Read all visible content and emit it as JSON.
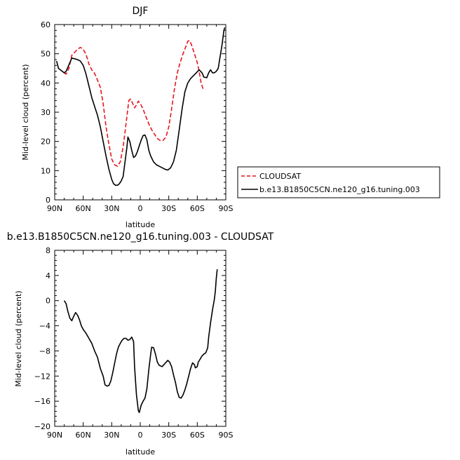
{
  "chart_data": [
    {
      "type": "line",
      "title": "DJF",
      "xlabel": "latitude",
      "ylabel": "Mid-level cloud (percent)",
      "xlim": [
        90,
        -90
      ],
      "ylim": [
        0,
        60
      ],
      "xticks": [
        90,
        60,
        30,
        0,
        -30,
        -60,
        -90
      ],
      "xtick_labels": [
        "90N",
        "60N",
        "30N",
        "0",
        "30S",
        "60S",
        "90S"
      ],
      "yticks": [
        0,
        10,
        20,
        30,
        40,
        50,
        60
      ],
      "ytick_labels": [
        "0",
        "10",
        "20",
        "30",
        "40",
        "50",
        "60"
      ],
      "legend": {
        "placement": "right"
      },
      "series": [
        {
          "name": "CLOUDSAT",
          "color": "#e8141e",
          "dash": "dashed",
          "points": [
            [
              80,
              43.5
            ],
            [
              78,
              43
            ],
            [
              75,
              45
            ],
            [
              72,
              49.5
            ],
            [
              69,
              50.5
            ],
            [
              66,
              51.5
            ],
            [
              63,
              52.2
            ],
            [
              60,
              51.5
            ],
            [
              57,
              49.8
            ],
            [
              54,
              46.5
            ],
            [
              51,
              44.5
            ],
            [
              48,
              43.3
            ],
            [
              45,
              41
            ],
            [
              42,
              38.5
            ],
            [
              39,
              33
            ],
            [
              36,
              25
            ],
            [
              33,
              19
            ],
            [
              30,
              14
            ],
            [
              27,
              12
            ],
            [
              24,
              11.5
            ],
            [
              21,
              13
            ],
            [
              18,
              18
            ],
            [
              15,
              26
            ],
            [
              12,
              34
            ],
            [
              10,
              34.5
            ],
            [
              8,
              33
            ],
            [
              6,
              31.5
            ],
            [
              4,
              32.5
            ],
            [
              2,
              33.8
            ],
            [
              0,
              33
            ],
            [
              -3,
              31
            ],
            [
              -6,
              28.5
            ],
            [
              -9,
              26
            ],
            [
              -12,
              24
            ],
            [
              -15,
              22.5
            ],
            [
              -18,
              21
            ],
            [
              -21,
              20.3
            ],
            [
              -24,
              20.3
            ],
            [
              -27,
              21.5
            ],
            [
              -30,
              25
            ],
            [
              -33,
              31
            ],
            [
              -36,
              38
            ],
            [
              -39,
              43.5
            ],
            [
              -42,
              47
            ],
            [
              -45,
              50
            ],
            [
              -48,
              52.5
            ],
            [
              -50,
              54.3
            ],
            [
              -52,
              54.5
            ],
            [
              -54,
              53
            ],
            [
              -57,
              50
            ],
            [
              -60,
              47
            ],
            [
              -62,
              44
            ],
            [
              -64,
              40
            ],
            [
              -66,
              38
            ]
          ]
        },
        {
          "name": "b.e13.B1850C5CN.ne120_g16.tuning.003",
          "color": "#000000",
          "dash": "solid",
          "points": [
            [
              88,
              47.5
            ],
            [
              86,
              45
            ],
            [
              84,
              44.5
            ],
            [
              82,
              44
            ],
            [
              80,
              43.5
            ],
            [
              78,
              44
            ],
            [
              76,
              45.5
            ],
            [
              74,
              47
            ],
            [
              72,
              48.5
            ],
            [
              69,
              48.3
            ],
            [
              66,
              48
            ],
            [
              63,
              47.5
            ],
            [
              60,
              46
            ],
            [
              57,
              43
            ],
            [
              54,
              39
            ],
            [
              51,
              35
            ],
            [
              48,
              32
            ],
            [
              45,
              29
            ],
            [
              42,
              25
            ],
            [
              39,
              20
            ],
            [
              36,
              15
            ],
            [
              33,
              10.5
            ],
            [
              30,
              7
            ],
            [
              28,
              5.5
            ],
            [
              26,
              5
            ],
            [
              24,
              5
            ],
            [
              22,
              5.5
            ],
            [
              20,
              6.5
            ],
            [
              18,
              8
            ],
            [
              16,
              13
            ],
            [
              14,
              18
            ],
            [
              13,
              21.5
            ],
            [
              11,
              20
            ],
            [
              9,
              17
            ],
            [
              7,
              14.5
            ],
            [
              5,
              15
            ],
            [
              3,
              16.5
            ],
            [
              1,
              18.5
            ],
            [
              -1,
              20.5
            ],
            [
              -3,
              22
            ],
            [
              -5,
              22.2
            ],
            [
              -7,
              20.5
            ],
            [
              -9,
              17
            ],
            [
              -11,
              15
            ],
            [
              -14,
              13
            ],
            [
              -17,
              12
            ],
            [
              -20,
              11.5
            ],
            [
              -23,
              11
            ],
            [
              -26,
              10.5
            ],
            [
              -29,
              10.2
            ],
            [
              -32,
              11
            ],
            [
              -35,
              13
            ],
            [
              -38,
              17
            ],
            [
              -41,
              24
            ],
            [
              -44,
              31
            ],
            [
              -47,
              37
            ],
            [
              -50,
              40
            ],
            [
              -53,
              41.5
            ],
            [
              -56,
              42.5
            ],
            [
              -59,
              43.5
            ],
            [
              -62,
              44.5
            ],
            [
              -65,
              43.5
            ],
            [
              -67,
              42
            ],
            [
              -70,
              41.8
            ],
            [
              -72,
              43.5
            ],
            [
              -74,
              44.5
            ],
            [
              -76,
              43.5
            ],
            [
              -78,
              43.5
            ],
            [
              -80,
              44
            ],
            [
              -82,
              45
            ],
            [
              -84,
              49
            ],
            [
              -86,
              53
            ],
            [
              -88,
              58
            ],
            [
              -89,
              59
            ]
          ]
        }
      ]
    },
    {
      "type": "line",
      "title": "b.e13.B1850C5CN.ne120_g16.tuning.003 - CLOUDSAT",
      "xlabel": "latitude",
      "ylabel": "Mid-level cloud (percent)",
      "xlim": [
        90,
        -90
      ],
      "ylim": [
        -20,
        8
      ],
      "xticks": [
        90,
        60,
        30,
        0,
        -30,
        -60,
        -90
      ],
      "xtick_labels": [
        "90N",
        "60N",
        "30N",
        "0",
        "30S",
        "60S",
        "90S"
      ],
      "yticks": [
        -20,
        -16,
        -12,
        -8,
        -4,
        0,
        4,
        8
      ],
      "ytick_labels": [
        "−20",
        "−16",
        "−12",
        "−8",
        "−4",
        "0",
        "4",
        "8"
      ],
      "series": [
        {
          "color": "#000000",
          "dash": "solid",
          "points": [
            [
              80,
              0
            ],
            [
              78,
              -0.5
            ],
            [
              76,
              -1.8
            ],
            [
              74,
              -2.8
            ],
            [
              72,
              -3.2
            ],
            [
              70,
              -2.5
            ],
            [
              68,
              -1.9
            ],
            [
              66,
              -2.3
            ],
            [
              64,
              -3
            ],
            [
              62,
              -4
            ],
            [
              60,
              -4.6
            ],
            [
              57,
              -5.2
            ],
            [
              54,
              -6
            ],
            [
              51,
              -6.8
            ],
            [
              48,
              -8
            ],
            [
              45,
              -9
            ],
            [
              42,
              -10.8
            ],
            [
              39,
              -12
            ],
            [
              37,
              -13.4
            ],
            [
              35,
              -13.6
            ],
            [
              33,
              -13.5
            ],
            [
              31,
              -12.8
            ],
            [
              29,
              -11.5
            ],
            [
              27,
              -10
            ],
            [
              25,
              -8.5
            ],
            [
              23,
              -7.4
            ],
            [
              21,
              -6.8
            ],
            [
              19,
              -6.3
            ],
            [
              17,
              -6
            ],
            [
              15,
              -6
            ],
            [
              13,
              -6.3
            ],
            [
              11,
              -6.2
            ],
            [
              9,
              -5.8
            ],
            [
              7,
              -6.5
            ],
            [
              6,
              -10.5
            ],
            [
              4,
              -15
            ],
            [
              2,
              -17.5
            ],
            [
              1,
              -17.8
            ],
            [
              -1,
              -16.6
            ],
            [
              -3,
              -16
            ],
            [
              -5,
              -15.5
            ],
            [
              -7,
              -14
            ],
            [
              -9,
              -11
            ],
            [
              -11,
              -8.5
            ],
            [
              -12,
              -7.4
            ],
            [
              -14,
              -7.5
            ],
            [
              -16,
              -8.5
            ],
            [
              -18,
              -9.8
            ],
            [
              -20,
              -10.3
            ],
            [
              -23,
              -10.5
            ],
            [
              -26,
              -10
            ],
            [
              -29,
              -9.5
            ],
            [
              -31,
              -9.8
            ],
            [
              -33,
              -10.5
            ],
            [
              -35,
              -11.8
            ],
            [
              -37,
              -13
            ],
            [
              -39,
              -14.5
            ],
            [
              -41,
              -15.4
            ],
            [
              -43,
              -15.5
            ],
            [
              -45,
              -15
            ],
            [
              -47,
              -14.2
            ],
            [
              -49,
              -13.2
            ],
            [
              -51,
              -12
            ],
            [
              -53,
              -10.8
            ],
            [
              -55,
              -9.9
            ],
            [
              -57,
              -10.2
            ],
            [
              -58,
              -10.7
            ],
            [
              -60,
              -10.5
            ],
            [
              -61,
              -9.8
            ],
            [
              -63,
              -9.3
            ],
            [
              -65,
              -8.8
            ],
            [
              -67,
              -8.5
            ],
            [
              -69,
              -8.3
            ],
            [
              -71,
              -7.5
            ],
            [
              -72,
              -5.8
            ],
            [
              -74,
              -3.5
            ],
            [
              -76,
              -1.5
            ],
            [
              -78,
              0.2
            ],
            [
              -79,
              1.5
            ],
            [
              -80,
              3.5
            ],
            [
              -81,
              5
            ]
          ]
        }
      ]
    }
  ]
}
